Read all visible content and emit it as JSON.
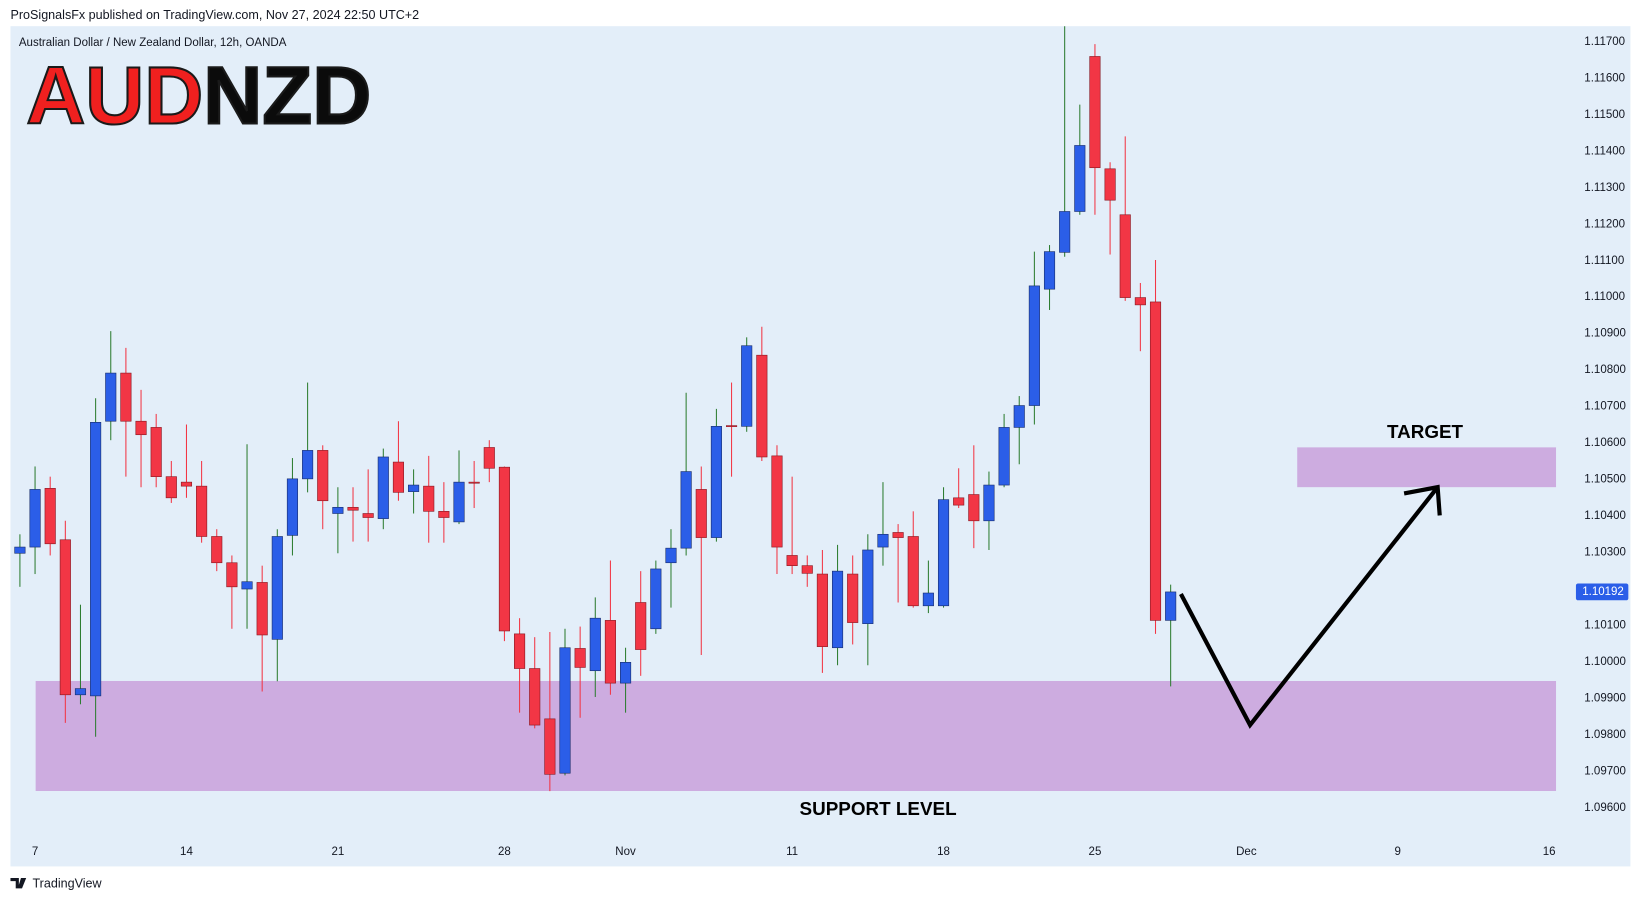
{
  "chart_data": {
    "type": "candlestick",
    "header": "ProSignalsFx published on TradingView.com, Nov 27, 2024 22:50 UTC+2",
    "subtitle": "Australian Dollar / New Zealand Dollar, 12h, OANDA",
    "title_parts": [
      {
        "text": "AUD",
        "color": "#f0201f"
      },
      {
        "text": "NZD",
        "color": "#0b0b0b"
      }
    ],
    "support_label": "SUPPORT LEVEL",
    "target_label": "TARGET",
    "footer": "TradingView",
    "up_color": "#2b5ee8",
    "down_color": "#f23645",
    "up_wick_color": "#2e7d32",
    "down_wick_color": "#f23645",
    "x": [
      0,
      1,
      2,
      3,
      4,
      5,
      6,
      7,
      8,
      9,
      10,
      11,
      12,
      13,
      14,
      15,
      16,
      17,
      18,
      19,
      20,
      21,
      22,
      23,
      24,
      25,
      26,
      27,
      28,
      29,
      30,
      31,
      32,
      33,
      34,
      35,
      36,
      37,
      38,
      39,
      40,
      41,
      42,
      43,
      44,
      45,
      46,
      47,
      48,
      49,
      50,
      51,
      52,
      53,
      54,
      55,
      56,
      57,
      58,
      59,
      60,
      61,
      62,
      63,
      64,
      65,
      66,
      67,
      68,
      69,
      70,
      71,
      72,
      73,
      74,
      75,
      76
    ],
    "open": [
      1.10298,
      1.10315,
      1.10476,
      1.10335,
      1.0991,
      1.09907,
      1.1066,
      1.10792,
      1.1066,
      1.10643,
      1.10508,
      1.10493,
      1.10482,
      1.10344,
      1.10272,
      1.102,
      1.10218,
      1.10062,
      1.10347,
      1.10502,
      1.1058,
      1.10407,
      1.10424,
      1.10407,
      1.10393,
      1.10548,
      1.10467,
      1.10482,
      1.10413,
      1.10384,
      1.10493,
      1.10588,
      1.10534,
      1.10077,
      1.09982,
      1.09844,
      1.09695,
      1.10037,
      1.09976,
      1.10114,
      1.09942,
      1.10163,
      1.10091,
      1.10272,
      1.10312,
      1.10473,
      1.10341,
      1.10648,
      1.10646,
      1.10841,
      1.10565,
      1.10292,
      1.10264,
      1.10241,
      1.10039,
      1.10241,
      1.10105,
      1.10315,
      1.10355,
      1.10344,
      1.10154,
      1.10154,
      1.1045,
      1.10459,
      1.10387,
      1.10485,
      1.10643,
      1.10703,
      1.11022,
      1.11123,
      1.11235,
      1.1166,
      1.11352,
      1.11226,
      1.10999,
      1.10987,
      1.10114
    ],
    "high": [
      1.1035,
      1.10536,
      1.10508,
      1.10387,
      1.10157,
      1.10723,
      1.10907,
      1.10861,
      1.10746,
      1.1068,
      1.10551,
      1.10651,
      1.10551,
      1.10364,
      1.10292,
      1.10597,
      1.10264,
      1.10364,
      1.10559,
      1.10766,
      1.10594,
      1.10479,
      1.10479,
      1.10528,
      1.10585,
      1.1066,
      1.10528,
      1.10565,
      1.10493,
      1.1058,
      1.10551,
      1.10608,
      1.10536,
      1.1012,
      1.10068,
      1.10082,
      1.10091,
      1.10097,
      1.10177,
      1.10278,
      1.10039,
      1.10249,
      1.10278,
      1.10364,
      1.10738,
      1.10536,
      1.10694,
      1.10766,
      1.1089,
      1.10919,
      1.10594,
      1.10508,
      1.10292,
      1.10307,
      1.10321,
      1.10292,
      1.1035,
      1.10493,
      1.10378,
      1.10413,
      1.10278,
      1.10479,
      1.10531,
      1.10594,
      1.10522,
      1.1068,
      1.10729,
      1.11125,
      1.11143,
      1.11743,
      1.11528,
      1.11694,
      1.1137,
      1.11441,
      1.11039,
      1.11102,
      1.10212
    ],
    "low": [
      1.10206,
      1.10241,
      1.10292,
      1.09833,
      1.09884,
      1.09795,
      1.10608,
      1.10508,
      1.10479,
      1.10479,
      1.10436,
      1.1045,
      1.10327,
      1.10249,
      1.10091,
      1.10091,
      1.09919,
      1.09947,
      1.10292,
      1.10465,
      1.10364,
      1.10298,
      1.1033,
      1.1033,
      1.10364,
      1.10442,
      1.10407,
      1.10327,
      1.10327,
      1.10378,
      1.10422,
      1.10493,
      1.10057,
      1.09861,
      1.09818,
      1.09646,
      1.09689,
      1.09847,
      1.09904,
      1.0991,
      1.09861,
      1.09962,
      1.10077,
      1.10149,
      1.10292,
      1.10019,
      1.1033,
      1.10508,
      1.10631,
      1.10551,
      1.10241,
      1.10241,
      1.10206,
      1.0997,
      1.09991,
      1.10048,
      1.09991,
      1.10264,
      1.10163,
      1.10149,
      1.10134,
      1.10149,
      1.10422,
      1.10312,
      1.10307,
      1.10479,
      1.10542,
      1.10651,
      1.10965,
      1.11111,
      1.11226,
      1.11226,
      1.11117,
      1.1099,
      1.10852,
      1.10077,
      1.09933
    ],
    "close": [
      1.10315,
      1.10473,
      1.10324,
      1.0991,
      1.09927,
      1.10657,
      1.10792,
      1.1066,
      1.10623,
      1.10508,
      1.1045,
      1.10482,
      1.10344,
      1.10272,
      1.10206,
      1.1022,
      1.10074,
      1.10344,
      1.10502,
      1.1058,
      1.10442,
      1.10424,
      1.10416,
      1.10396,
      1.10562,
      1.10465,
      1.10485,
      1.10413,
      1.10396,
      1.10493,
      1.1049,
      1.10531,
      1.10085,
      1.09982,
      1.09827,
      1.09692,
      1.10039,
      1.09985,
      1.1012,
      1.09942,
      1.09999,
      1.10034,
      1.10255,
      1.10312,
      1.10522,
      1.10341,
      1.10646,
      1.10646,
      1.10867,
      1.10562,
      1.10315,
      1.10264,
      1.10243,
      1.10042,
      1.10249,
      1.10108,
      1.10307,
      1.1035,
      1.10341,
      1.10154,
      1.10189,
      1.10445,
      1.1043,
      1.10387,
      1.10485,
      1.10643,
      1.10703,
      1.11031,
      1.11125,
      1.11235,
      1.11416,
      1.11355,
      1.11266,
      1.10999,
      1.10979,
      1.10114,
      1.10192
    ],
    "xlim": [
      -0.623,
      102.49
    ],
    "xticks": [
      {
        "value": 1,
        "label": "7"
      },
      {
        "value": 11,
        "label": "14"
      },
      {
        "value": 21,
        "label": "21"
      },
      {
        "value": 32,
        "label": "28"
      },
      {
        "value": 40,
        "label": "Nov"
      },
      {
        "value": 51,
        "label": "11"
      },
      {
        "value": 61,
        "label": "18"
      },
      {
        "value": 71,
        "label": "25"
      },
      {
        "value": 81,
        "label": "Dec"
      },
      {
        "value": 91,
        "label": "9"
      },
      {
        "value": 101,
        "label": "16"
      }
    ],
    "ylim": [
      1.09517,
      1.11743
    ],
    "yticks": [
      {
        "value": 1.096,
        "label": "1.09600"
      },
      {
        "value": 1.097,
        "label": "1.09700"
      },
      {
        "value": 1.098,
        "label": "1.09800"
      },
      {
        "value": 1.099,
        "label": "1.09900"
      },
      {
        "value": 1.1,
        "label": "1.10000"
      },
      {
        "value": 1.101,
        "label": "1.10100"
      },
      {
        "value": 1.102,
        "label": "1.10200"
      },
      {
        "value": 1.103,
        "label": "1.10300"
      },
      {
        "value": 1.104,
        "label": "1.10400"
      },
      {
        "value": 1.105,
        "label": "1.10500"
      },
      {
        "value": 1.106,
        "label": "1.10600"
      },
      {
        "value": 1.107,
        "label": "1.10700"
      },
      {
        "value": 1.108,
        "label": "1.10800"
      },
      {
        "value": 1.109,
        "label": "1.10900"
      },
      {
        "value": 1.11,
        "label": "1.11000"
      },
      {
        "value": 1.111,
        "label": "1.11100"
      },
      {
        "value": 1.112,
        "label": "1.11200"
      },
      {
        "value": 1.113,
        "label": "1.11300"
      },
      {
        "value": 1.114,
        "label": "1.11400"
      },
      {
        "value": 1.115,
        "label": "1.11500"
      },
      {
        "value": 1.116,
        "label": "1.11600"
      },
      {
        "value": 1.117,
        "label": "1.11700"
      }
    ],
    "grid": false
  }
}
